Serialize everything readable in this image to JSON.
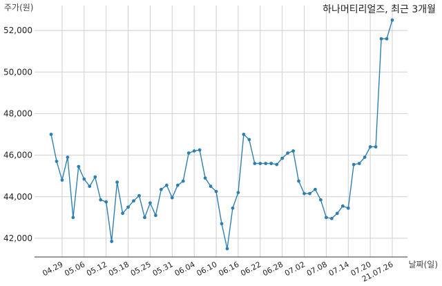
{
  "chart_data": {
    "type": "line",
    "title": "하나머티리얼즈, 최근 3개월",
    "ylabel": "주가(원)",
    "xlabel": "날짜(일)",
    "ylim": [
      41000,
      53000
    ],
    "yticks": [
      42000,
      44000,
      46000,
      48000,
      50000,
      52000
    ],
    "ytick_labels": [
      "42,000",
      "44,000",
      "46,000",
      "48,000",
      "50,000",
      "52,000"
    ],
    "xtick_labels": [
      "04.29",
      "05.06",
      "05.12",
      "05.18",
      "05.25",
      "05.31",
      "06.04",
      "06.10",
      "06.16",
      "06.22",
      "06.28",
      "07.02",
      "07.08",
      "07.14",
      "07.20",
      "21.07.26"
    ],
    "xtick_index": [
      2,
      6,
      10,
      14,
      18,
      22,
      26,
      30,
      34,
      38,
      42,
      46,
      50,
      54,
      58,
      62
    ],
    "grid": true,
    "color": "#2e7fb0",
    "series": [
      {
        "values": [
          47000,
          45700,
          44800,
          45900,
          43000,
          45450,
          44850,
          44500,
          44950,
          43850,
          43750,
          41850,
          44700,
          43200,
          43500,
          43800,
          44050,
          43000,
          43700,
          43100,
          44350,
          44550,
          43950,
          44550,
          44750,
          46100,
          46200,
          46250,
          44900,
          44500,
          44250,
          42700,
          41500,
          43450,
          44200,
          47000,
          46750,
          45600,
          45600,
          45600,
          45600,
          45550,
          45850,
          46100,
          46200,
          44750,
          44150,
          44150,
          44350,
          43850,
          43000,
          42950,
          43200,
          43550,
          43450,
          45550,
          45600,
          45900,
          46400,
          46400,
          51600,
          51600,
          52500
        ]
      }
    ]
  }
}
